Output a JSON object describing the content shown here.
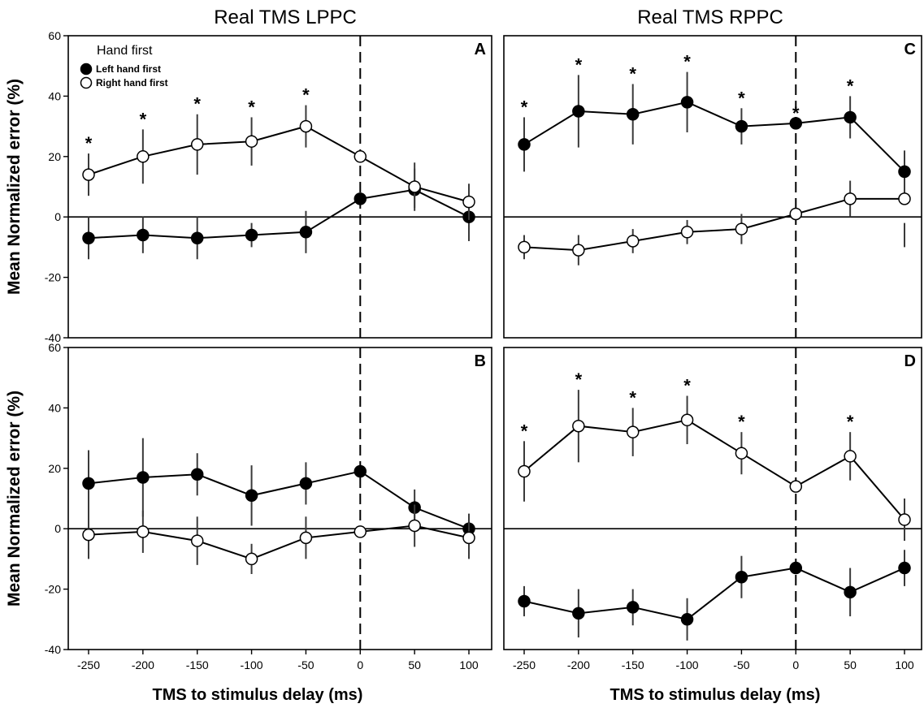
{
  "column_titles": [
    "Real TMS LPPC",
    "Real TMS RPPC"
  ],
  "y_axis_label": "Mean Normalized error (%)",
  "x_axis_label": "TMS to stimulus delay (ms)",
  "legend": {
    "title": "Hand first",
    "items": [
      {
        "label": "Left hand first",
        "marker": "filled",
        "color": "#000000"
      },
      {
        "label": "Right hand first",
        "marker": "open",
        "color": "#ffffff"
      }
    ]
  },
  "chart_data": [
    {
      "panel": "A",
      "type": "line",
      "x": [
        -250,
        -200,
        -150,
        -100,
        -50,
        0,
        50,
        100
      ],
      "xlim": [
        -290,
        112
      ],
      "ylim": [
        -40,
        60
      ],
      "yticks": [
        60,
        40,
        20,
        0,
        -20,
        -40
      ],
      "series": [
        {
          "name": "Left hand first",
          "values": [
            -7,
            -6,
            -7,
            -6,
            -5,
            6,
            9,
            0
          ],
          "err_upper": [
            0,
            0,
            0,
            -2,
            2,
            6,
            16,
            6
          ],
          "err_lower": [
            -14,
            -12,
            -14,
            -10,
            -12,
            6,
            3,
            -8
          ]
        },
        {
          "name": "Right hand first",
          "values": [
            14,
            20,
            24,
            25,
            30,
            20,
            10,
            5
          ],
          "err_upper": [
            21,
            29,
            34,
            33,
            37,
            20,
            18,
            11
          ],
          "err_lower": [
            7,
            11,
            14,
            17,
            23,
            20,
            2,
            -1
          ]
        }
      ],
      "significance": [
        "*",
        "*",
        "*",
        "*",
        "*",
        "",
        "",
        ""
      ]
    },
    {
      "panel": "C",
      "type": "line",
      "x": [
        -250,
        -200,
        -150,
        -100,
        -50,
        0,
        50,
        100
      ],
      "xlim": [
        -290,
        112
      ],
      "ylim": [
        -40,
        60
      ],
      "yticks": [
        60,
        40,
        20,
        0,
        -20,
        -40
      ],
      "series": [
        {
          "name": "Left hand first",
          "values": [
            24,
            35,
            34,
            38,
            30,
            31,
            33,
            15
          ],
          "err_upper": [
            33,
            47,
            44,
            48,
            36,
            31,
            40,
            22
          ],
          "err_lower": [
            15,
            23,
            24,
            28,
            24,
            31,
            26,
            8
          ]
        },
        {
          "name": "Right hand first",
          "values": [
            -10,
            -11,
            -8,
            -5,
            -4,
            1,
            6,
            6
          ],
          "err_upper": [
            -6,
            -6,
            -4,
            -1,
            1,
            1,
            12,
            -2
          ],
          "err_lower": [
            -14,
            -16,
            -12,
            -9,
            -9,
            1,
            0,
            -10
          ]
        }
      ],
      "significance": [
        "*",
        "*",
        "*",
        "*",
        "*",
        "*",
        "*",
        ""
      ]
    },
    {
      "panel": "B",
      "type": "line",
      "x": [
        -250,
        -200,
        -150,
        -100,
        -50,
        0,
        50,
        100
      ],
      "xlim": [
        -290,
        112
      ],
      "ylim": [
        -40,
        60
      ],
      "yticks": [
        60,
        40,
        20,
        0,
        -20,
        -40
      ],
      "series": [
        {
          "name": "Left hand first",
          "values": [
            15,
            17,
            18,
            11,
            15,
            19,
            7,
            0
          ],
          "err_upper": [
            26,
            30,
            25,
            21,
            22,
            19,
            13,
            5
          ],
          "err_lower": [
            4,
            4,
            11,
            1,
            8,
            19,
            1,
            -5
          ]
        },
        {
          "name": "Right hand first",
          "values": [
            -2,
            -1,
            -4,
            -10,
            -3,
            -1,
            1,
            -3
          ],
          "err_upper": [
            6,
            6,
            4,
            -5,
            4,
            -1,
            8,
            2
          ],
          "err_lower": [
            -10,
            -8,
            -12,
            -15,
            -10,
            -1,
            -6,
            -10
          ]
        }
      ],
      "significance": [
        "",
        "",
        "",
        "",
        "",
        "",
        "",
        ""
      ]
    },
    {
      "panel": "D",
      "type": "line",
      "x": [
        -250,
        -200,
        -150,
        -100,
        -50,
        0,
        50,
        100
      ],
      "xlim": [
        -290,
        112
      ],
      "ylim": [
        -40,
        60
      ],
      "yticks": [
        60,
        40,
        20,
        0,
        -20,
        -40
      ],
      "series": [
        {
          "name": "Left hand first",
          "values": [
            -24,
            -28,
            -26,
            -30,
            -16,
            -13,
            -21,
            -13
          ],
          "err_upper": [
            -19,
            -20,
            -20,
            -23,
            -9,
            -13,
            -13,
            -7
          ],
          "err_lower": [
            -29,
            -36,
            -32,
            -37,
            -23,
            -13,
            -29,
            -19
          ]
        },
        {
          "name": "Right hand first",
          "values": [
            19,
            34,
            32,
            36,
            25,
            14,
            24,
            3
          ],
          "err_upper": [
            29,
            46,
            40,
            44,
            32,
            14,
            32,
            10
          ],
          "err_lower": [
            9,
            22,
            24,
            28,
            18,
            14,
            16,
            -4
          ]
        }
      ],
      "significance": [
        "*",
        "*",
        "*",
        "*",
        "*",
        "",
        "*",
        ""
      ]
    }
  ]
}
